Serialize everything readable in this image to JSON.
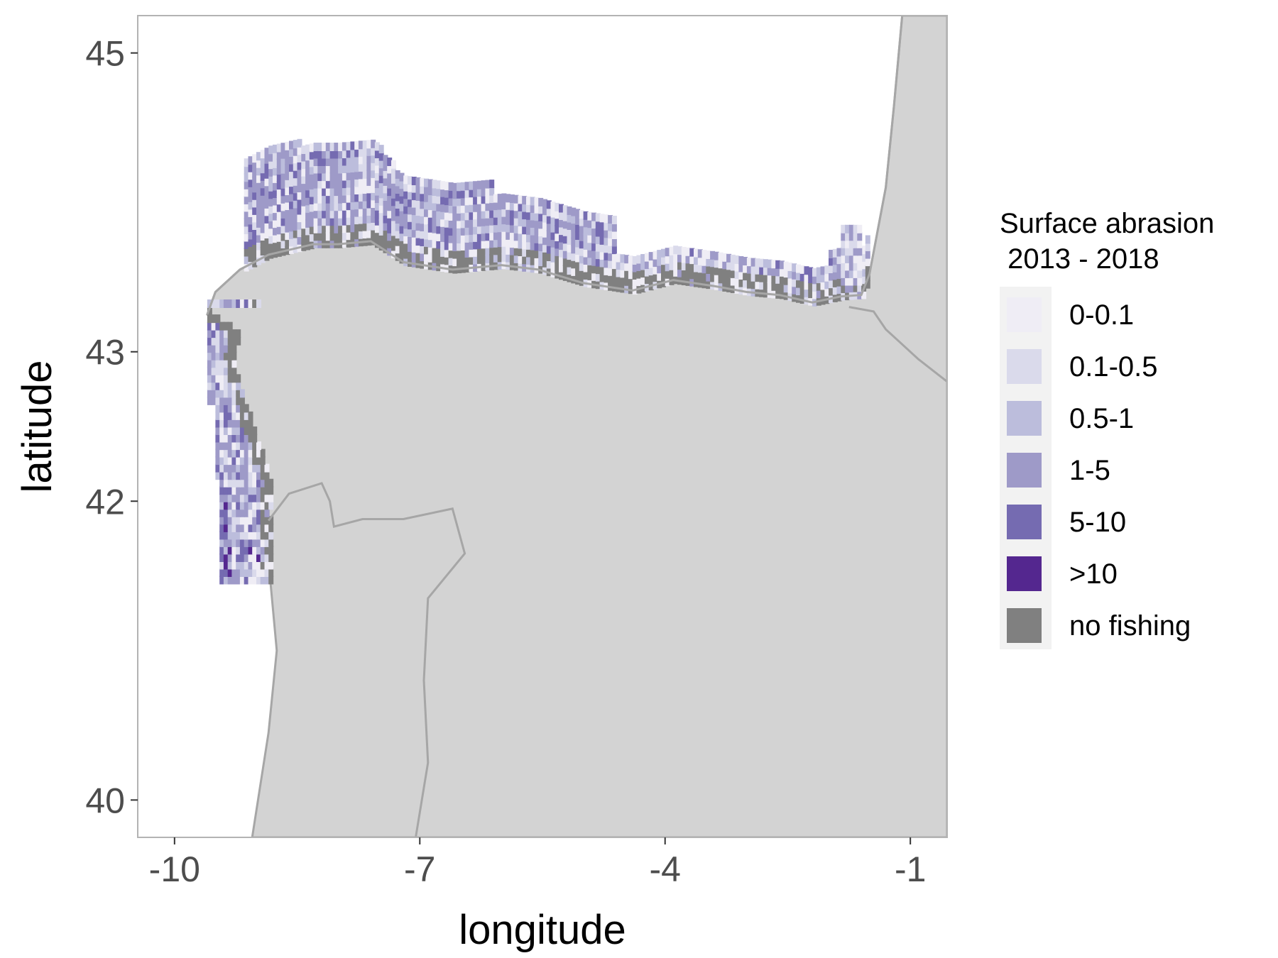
{
  "chart_data": {
    "type": "map",
    "xlabel": "longitude",
    "ylabel": "latitude",
    "xlim": [
      -10.45,
      -0.55
    ],
    "ylim": [
      39.75,
      45.25
    ],
    "x_ticks": [
      -10,
      -7,
      -4,
      -1
    ],
    "y_ticks": [
      40,
      42,
      43,
      45
    ],
    "grid": false,
    "legend": {
      "title_line1": "Surface abrasion",
      "title_line2": " 2013 - 2018",
      "placement": "right",
      "classes": [
        {
          "label": "0-0.1",
          "color": "#efedf5"
        },
        {
          "label": "0.1-0.5",
          "color": "#dadaeb"
        },
        {
          "label": "0.5-1",
          "color": "#bcbddc"
        },
        {
          "label": "1-5",
          "color": "#9e9ac8"
        },
        {
          "label": "5-10",
          "color": "#756bb1"
        },
        {
          "label": ">10",
          "color": "#54278f"
        },
        {
          "label": "no fishing",
          "color": "#808080"
        }
      ]
    },
    "land_color": "#d3d3d3",
    "border_color": "#a6a6a6",
    "coastline": [
      [
        -9.6,
        43.25
      ],
      [
        -9.5,
        43.4
      ],
      [
        -9.2,
        43.55
      ],
      [
        -8.85,
        43.65
      ],
      [
        -8.3,
        43.72
      ],
      [
        -8.0,
        43.72
      ],
      [
        -7.6,
        43.74
      ],
      [
        -7.2,
        43.6
      ],
      [
        -6.6,
        43.55
      ],
      [
        -6.0,
        43.58
      ],
      [
        -5.55,
        43.55
      ],
      [
        -5.0,
        43.46
      ],
      [
        -4.4,
        43.41
      ],
      [
        -3.9,
        43.48
      ],
      [
        -3.4,
        43.44
      ],
      [
        -3.0,
        43.4
      ],
      [
        -2.6,
        43.38
      ],
      [
        -2.2,
        43.33
      ],
      [
        -1.85,
        43.37
      ],
      [
        -1.6,
        43.38
      ],
      [
        -1.5,
        43.52
      ],
      [
        -1.3,
        44.1
      ],
      [
        -1.2,
        44.65
      ],
      [
        -1.1,
        45.25
      ]
    ],
    "iberia_outline": [
      [
        -9.6,
        43.25
      ],
      [
        -9.5,
        43.4
      ],
      [
        -9.2,
        43.55
      ],
      [
        -8.85,
        43.65
      ],
      [
        -8.3,
        43.72
      ],
      [
        -8.0,
        43.72
      ],
      [
        -7.6,
        43.74
      ],
      [
        -7.2,
        43.6
      ],
      [
        -6.6,
        43.55
      ],
      [
        -6.0,
        43.58
      ],
      [
        -5.55,
        43.55
      ],
      [
        -5.0,
        43.46
      ],
      [
        -4.4,
        43.41
      ],
      [
        -3.9,
        43.48
      ],
      [
        -3.4,
        43.44
      ],
      [
        -3.0,
        43.4
      ],
      [
        -2.6,
        43.38
      ],
      [
        -2.2,
        43.33
      ],
      [
        -1.85,
        43.37
      ],
      [
        -1.6,
        43.38
      ],
      [
        -1.5,
        43.52
      ],
      [
        -1.3,
        44.1
      ],
      [
        -1.2,
        44.65
      ],
      [
        -1.1,
        45.25
      ],
      [
        -0.55,
        45.25
      ],
      [
        -0.55,
        39.75
      ],
      [
        -9.05,
        39.75
      ],
      [
        -8.85,
        40.45
      ],
      [
        -8.75,
        41.0
      ],
      [
        -8.85,
        41.6
      ],
      [
        -8.85,
        42.1
      ],
      [
        -9.0,
        42.35
      ],
      [
        -9.15,
        42.6
      ],
      [
        -9.3,
        42.9
      ],
      [
        -9.25,
        43.1
      ],
      [
        -9.6,
        43.25
      ]
    ],
    "borders": [
      [
        [
          -8.85,
          41.87
        ],
        [
          -8.6,
          42.05
        ],
        [
          -8.2,
          42.12
        ],
        [
          -8.1,
          42.0
        ],
        [
          -8.05,
          41.83
        ],
        [
          -7.7,
          41.88
        ],
        [
          -7.2,
          41.88
        ],
        [
          -6.6,
          41.95
        ],
        [
          -6.45,
          41.65
        ],
        [
          -6.9,
          41.35
        ],
        [
          -6.95,
          40.8
        ],
        [
          -6.9,
          40.25
        ],
        [
          -7.05,
          39.75
        ]
      ],
      [
        [
          -1.75,
          43.3
        ],
        [
          -1.45,
          43.27
        ],
        [
          -1.3,
          43.15
        ],
        [
          -0.9,
          42.95
        ],
        [
          -0.55,
          42.8
        ]
      ]
    ],
    "abrasion_intensity": "surface abrasion index (swept area ratio) per 0.05° cell along the northern Spanish / Portuguese continental shelf"
  }
}
